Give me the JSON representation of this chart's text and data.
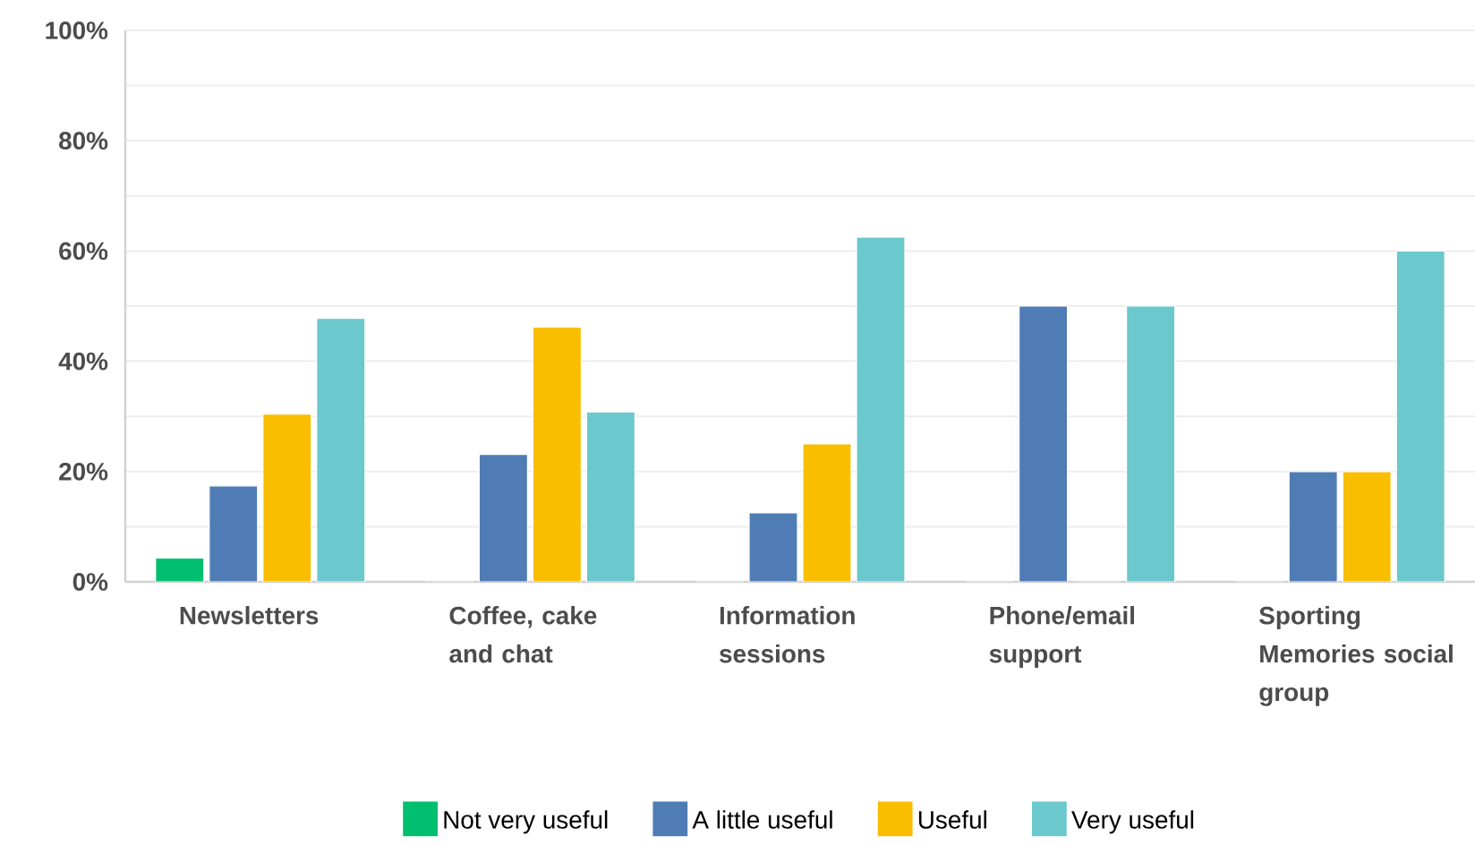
{
  "chart_data": {
    "type": "bar",
    "categories": [
      "Newsletters",
      "Coffee, cake and chat",
      "Information sessions",
      "Phone/email support",
      "Sporting Memories social group"
    ],
    "series": [
      {
        "name": "Not very useful",
        "color": "#00bf6f",
        "values": [
          4.3,
          0,
          0,
          0,
          0
        ]
      },
      {
        "name": "A little useful",
        "color": "#507cb6",
        "values": [
          17.4,
          23.1,
          12.5,
          50,
          20
        ]
      },
      {
        "name": "Useful",
        "color": "#f9be00",
        "values": [
          30.4,
          46.2,
          25,
          0,
          20
        ]
      },
      {
        "name": "Very useful",
        "color": "#6bc8cd",
        "values": [
          47.8,
          30.8,
          62.5,
          50,
          60
        ]
      }
    ],
    "ylim": [
      0,
      100
    ],
    "yticks": [
      {
        "value": 0,
        "label": "0%"
      },
      {
        "value": 10,
        "label": null
      },
      {
        "value": 20,
        "label": "20%"
      },
      {
        "value": 30,
        "label": null
      },
      {
        "value": 40,
        "label": "40%"
      },
      {
        "value": 50,
        "label": null
      },
      {
        "value": 60,
        "label": "60%"
      },
      {
        "value": 70,
        "label": null
      },
      {
        "value": 80,
        "label": "80%"
      },
      {
        "value": 90,
        "label": null
      },
      {
        "value": 100,
        "label": "100%"
      }
    ],
    "grid": "y",
    "legend": "bottom"
  }
}
